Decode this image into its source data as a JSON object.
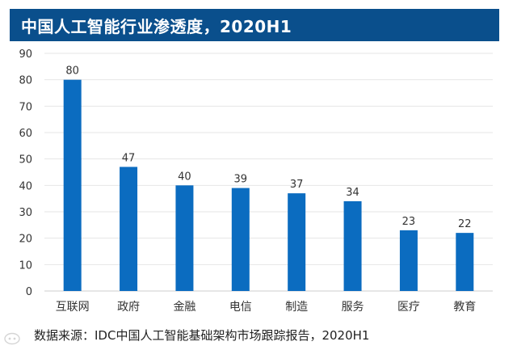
{
  "header": {
    "title": "中国人工智能行业渗透度，2020H1"
  },
  "footer": {
    "source": "数据来源：IDC中国人工智能基础架构市场跟踪报告，2020H1"
  },
  "colors": {
    "title_bg": "#0a4f8c",
    "bar": "#0b6cc0",
    "grid": "#e6e6e6",
    "axis_text": "#333333"
  },
  "chart_data": {
    "type": "bar",
    "categories": [
      "互联网",
      "政府",
      "金融",
      "电信",
      "制造",
      "服务",
      "医疗",
      "教育"
    ],
    "values": [
      80,
      47,
      40,
      39,
      37,
      34,
      23,
      22
    ],
    "ylim": [
      0,
      90
    ],
    "yticks": [
      0,
      10,
      20,
      30,
      40,
      50,
      60,
      70,
      80,
      90
    ],
    "grid": true,
    "data_labels": true
  }
}
